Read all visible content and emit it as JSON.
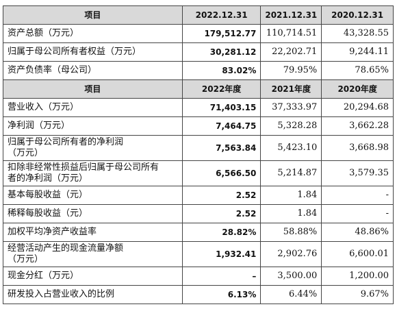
{
  "table": {
    "sections": [
      {
        "header": [
          "项目",
          "2022.12.31",
          "2021.12.31",
          "2020.12.31"
        ],
        "rows": [
          [
            [
              "资产总额（万元）"
            ],
            "179,512.77",
            "110,714.51",
            "43,328.55"
          ],
          [
            [
              "归属于母公司所有者权益（万元）"
            ],
            "30,281.12",
            "22,202.71",
            "9,244.11"
          ],
          [
            [
              "资产负债率（母公司）"
            ],
            "83.02%",
            "79.95%",
            "78.65%"
          ]
        ]
      },
      {
        "header": [
          "项目",
          "2022年度",
          "2021年度",
          "2020年度"
        ],
        "rows": [
          [
            [
              "营业收入（万元）"
            ],
            "71,403.15",
            "37,333.97",
            "20,294.68"
          ],
          [
            [
              "净利润（万元）"
            ],
            "7,464.75",
            "5,328.28",
            "3,662.28"
          ],
          [
            [
              "归属于母公司所有者的净利润",
              "（万元）"
            ],
            "7,563.84",
            "5,423.10",
            "3,668.98"
          ],
          [
            [
              "扣除非经常性损益后归属于母公司所有",
              "者的净利润（万元）"
            ],
            "6,566.50",
            "5,214.87",
            "3,579.35"
          ],
          [
            [
              "基本每股收益（元）"
            ],
            "2.52",
            "1.84",
            "-"
          ],
          [
            [
              "稀释每股收益（元）"
            ],
            "2.52",
            "1.84",
            "-"
          ],
          [
            [
              "加权平均净资产收益率"
            ],
            "28.82%",
            "58.88%",
            "48.86%"
          ],
          [
            [
              "经营活动产生的现金流量净额",
              "（万元）"
            ],
            "1,932.41",
            "2,902.76",
            "6,600.01"
          ],
          [
            [
              "现金分红（万元）"
            ],
            "–",
            "3,500.00",
            "1,200.00"
          ],
          [
            [
              "研发投入占营业收入的比例"
            ],
            "6.13%",
            "6.44%",
            "9.67%"
          ]
        ]
      }
    ]
  }
}
